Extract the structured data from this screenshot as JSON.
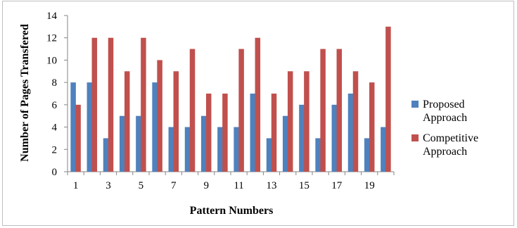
{
  "chart_data": {
    "type": "bar",
    "title": "",
    "xlabel": "Pattern Numbers",
    "ylabel": "Number of Pages Transfered",
    "ylim": [
      0,
      14
    ],
    "yticks": [
      0,
      2,
      4,
      6,
      8,
      10,
      12,
      14
    ],
    "categories": [
      "1",
      "2",
      "3",
      "4",
      "5",
      "6",
      "7",
      "8",
      "9",
      "10",
      "11",
      "12",
      "13",
      "14",
      "15",
      "16",
      "17",
      "18",
      "19",
      "20"
    ],
    "xtick_labels": [
      "1",
      "",
      "3",
      "",
      "5",
      "",
      "7",
      "",
      "9",
      "",
      "11",
      "",
      "13",
      "",
      "15",
      "",
      "17",
      "",
      "19",
      ""
    ],
    "grid": false,
    "legend_position": "right",
    "series": [
      {
        "name": "Proposed\nApproach",
        "color": "#4f81bd",
        "values": [
          8,
          8,
          3,
          5,
          5,
          8,
          4,
          4,
          5,
          4,
          4,
          7,
          3,
          5,
          6,
          3,
          6,
          7,
          3,
          4
        ]
      },
      {
        "name": "Competitive\nApproach",
        "color": "#c0504d",
        "values": [
          6,
          12,
          12,
          9,
          12,
          10,
          9,
          11,
          7,
          7,
          11,
          12,
          7,
          9,
          9,
          11,
          11,
          9,
          8,
          13
        ]
      }
    ]
  }
}
